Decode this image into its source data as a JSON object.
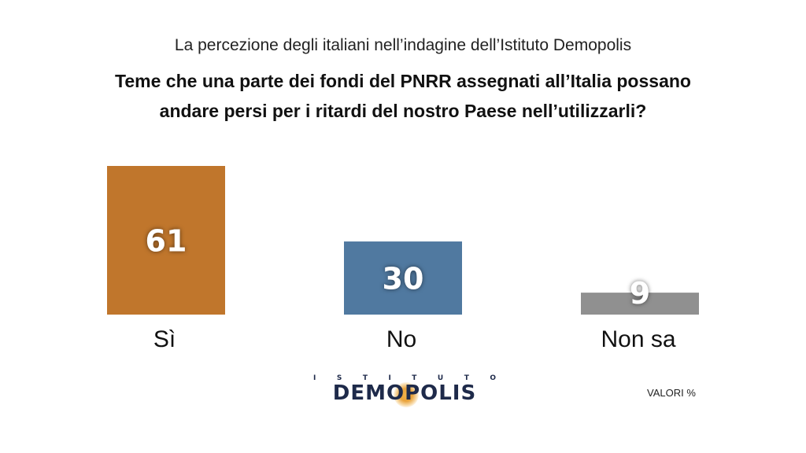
{
  "header": {
    "subtitle": "La percezione degli italiani nell’indagine dell’Istituto Demopolis",
    "title_line1": "Teme che una parte dei fondi del PNRR assegnati all’Italia possano",
    "title_line2": "andare persi per i ritardi del nostro Paese nell’utilizzarli?"
  },
  "chart_data": {
    "type": "bar",
    "categories": [
      "Sì",
      "No",
      "Non sa"
    ],
    "values": [
      61,
      30,
      9
    ],
    "colors": [
      "#c0762c",
      "#5079a0",
      "#909090"
    ],
    "title": "Teme che una parte dei fondi del PNRR assegnati all’Italia possano andare persi per i ritardi del nostro Paese nell’utilizzarli?",
    "xlabel": "",
    "ylabel": "",
    "ylim": [
      0,
      61
    ],
    "grid": false
  },
  "logo": {
    "top_text": "ISTITUTO",
    "main_text": "DEMOPOLIS",
    "accent_color": "#f0b24a",
    "text_color": "#1e2a4a"
  },
  "footer": {
    "units_label": "VALORI %"
  }
}
